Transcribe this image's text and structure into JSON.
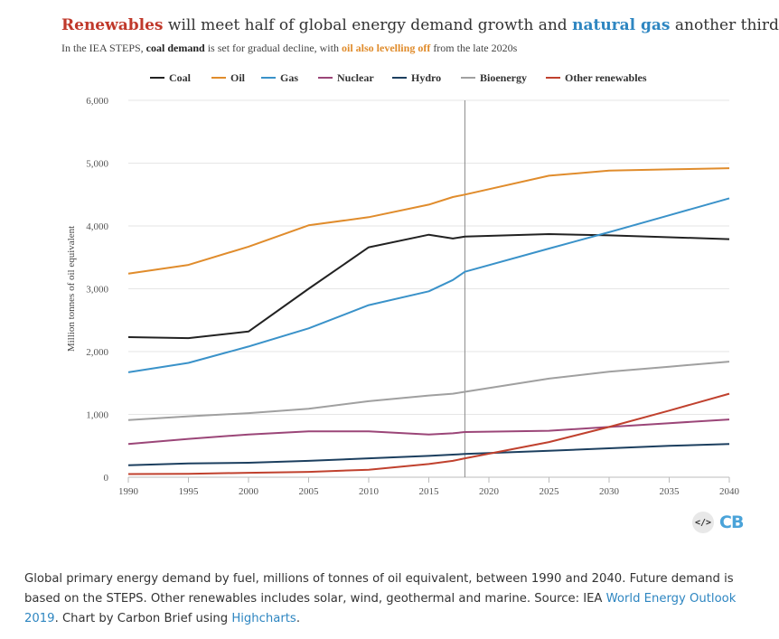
{
  "header": {
    "title_parts": [
      {
        "text": "Renewables",
        "bold": true,
        "color": "#c0392b"
      },
      {
        "text": " will meet half of global energy demand growth and ",
        "bold": false,
        "color": "#333333"
      },
      {
        "text": "natural gas",
        "bold": true,
        "color": "#2e86c1"
      },
      {
        "text": " another third",
        "bold": false,
        "color": "#333333"
      }
    ],
    "subtitle_parts": [
      {
        "text": "In the IEA STEPS, ",
        "bold": false,
        "color": "#444444"
      },
      {
        "text": "coal demand",
        "bold": true,
        "color": "#222222"
      },
      {
        "text": " is set for gradual decline, with ",
        "bold": false,
        "color": "#444444"
      },
      {
        "text": "oil also levelling off",
        "bold": true,
        "color": "#e08c2c"
      },
      {
        "text": " from the late 2020s",
        "bold": false,
        "color": "#444444"
      }
    ]
  },
  "chart_data": {
    "type": "line",
    "xlabel": "",
    "ylabel": "Million tonnes of oil equivalent",
    "xlim": [
      1990,
      2040
    ],
    "ylim": [
      0,
      6000
    ],
    "x_ticks": [
      "1990",
      "1995",
      "2000",
      "2005",
      "2010",
      "2015",
      "2020",
      "2025",
      "2030",
      "2035",
      "2040"
    ],
    "y_ticks": [
      "0",
      "1,000",
      "2,000",
      "3,000",
      "4,000",
      "5,000",
      "6,000"
    ],
    "y_tick_values": [
      0,
      1000,
      2000,
      3000,
      4000,
      5000,
      6000
    ],
    "grid": "horizontal",
    "legend_position": "top",
    "vertical_marker_x": 2018,
    "x": [
      1990,
      1995,
      2000,
      2005,
      2010,
      2015,
      2017,
      2018,
      2025,
      2030,
      2035,
      2040
    ],
    "series": [
      {
        "name": "Coal",
        "color": "#222222",
        "values": [
          2230,
          2215,
          2320,
          3000,
          3660,
          3860,
          3800,
          3830,
          3870,
          3850,
          3820,
          3790
        ]
      },
      {
        "name": "Oil",
        "color": "#e08c2c",
        "values": [
          3240,
          3380,
          3670,
          4010,
          4140,
          4340,
          4460,
          4500,
          4800,
          4880,
          4900,
          4920
        ]
      },
      {
        "name": "Gas",
        "color": "#3a92c9",
        "values": [
          1670,
          1820,
          2080,
          2370,
          2740,
          2960,
          3140,
          3270,
          3640,
          3900,
          4170,
          4440
        ]
      },
      {
        "name": "Nuclear",
        "color": "#9b4678",
        "values": [
          530,
          610,
          680,
          730,
          730,
          680,
          700,
          720,
          740,
          800,
          860,
          920
        ]
      },
      {
        "name": "Hydro",
        "color": "#1c3f5f",
        "values": [
          190,
          220,
          230,
          260,
          300,
          340,
          360,
          370,
          420,
          460,
          500,
          530
        ]
      },
      {
        "name": "Bioenergy",
        "color": "#a0a0a0",
        "values": [
          910,
          970,
          1020,
          1090,
          1210,
          1300,
          1330,
          1360,
          1570,
          1680,
          1760,
          1840
        ]
      },
      {
        "name": "Other renewables",
        "color": "#c0412e",
        "values": [
          50,
          55,
          70,
          85,
          120,
          210,
          260,
          300,
          560,
          800,
          1060,
          1330
        ]
      }
    ]
  },
  "logo": {
    "code_label": "</>",
    "brand": "CB"
  },
  "caption": {
    "text_1": "Global primary energy demand by fuel, millions of tonnes of oil equivalent, between 1990 and 2040. Future demand is based on the STEPS. Other renewables includes solar, wind, geothermal and marine. Source: IEA ",
    "link_1": "World Energy Outlook 2019",
    "text_2": ". Chart by Carbon Brief using ",
    "link_2": "Highcharts",
    "text_3": "."
  }
}
